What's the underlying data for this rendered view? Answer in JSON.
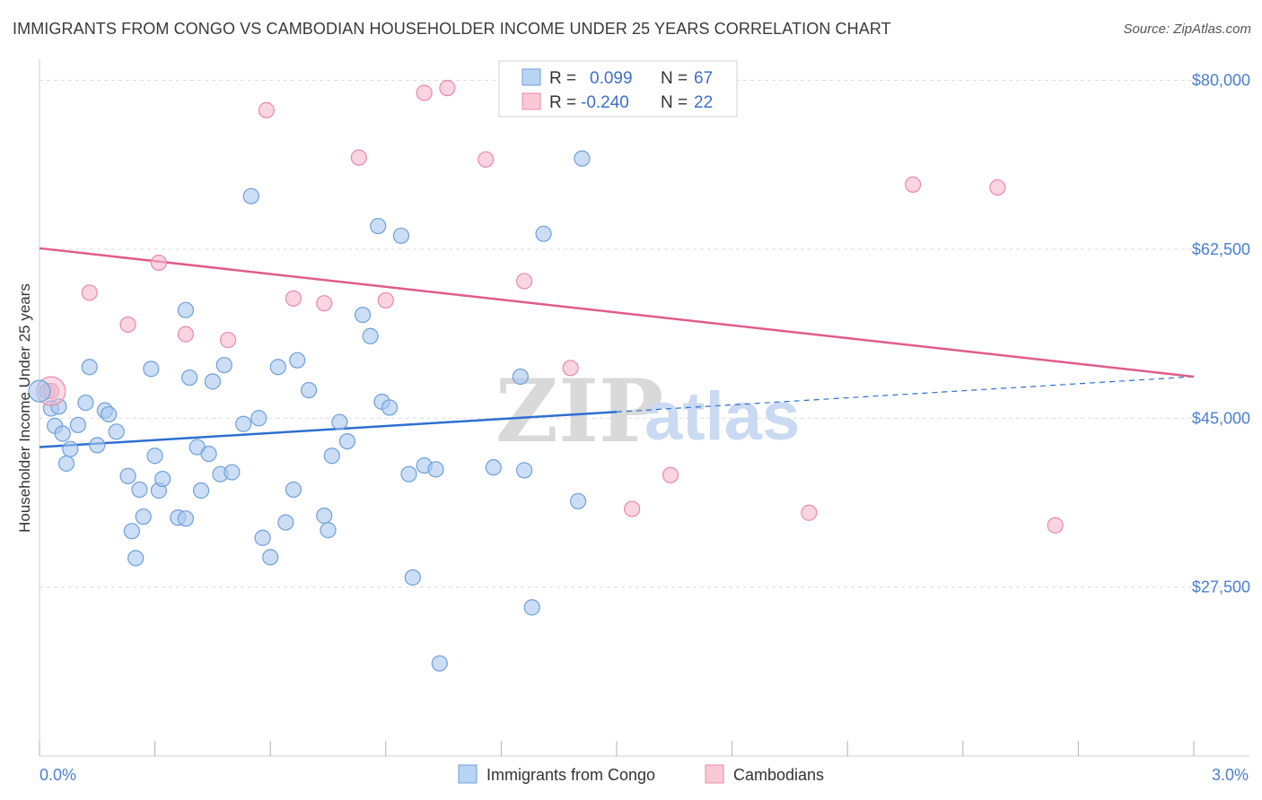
{
  "title": "IMMIGRANTS FROM CONGO VS CAMBODIAN HOUSEHOLDER INCOME UNDER 25 YEARS CORRELATION CHART",
  "source": "Source: ZipAtlas.com",
  "watermark": {
    "zip": "ZIP",
    "atlas": "atlas"
  },
  "chart_data": {
    "type": "scatter",
    "title": "IMMIGRANTS FROM CONGO VS CAMBODIAN HOUSEHOLDER INCOME UNDER 25 YEARS CORRELATION CHART",
    "xlabel": "",
    "ylabel": "Householder Income Under 25 years",
    "xlim": [
      0.0,
      3.0
    ],
    "ylim": [
      10000,
      82000
    ],
    "x_tick_labels": {
      "left": "0.0%",
      "right": "3.0%"
    },
    "y_ticks": [
      {
        "value": 80000,
        "label": "$80,000"
      },
      {
        "value": 62500,
        "label": "$62,500"
      },
      {
        "value": 45000,
        "label": "$45,000"
      },
      {
        "value": 27500,
        "label": "$27,500"
      }
    ],
    "legend": {
      "series1": {
        "r_label": "R =",
        "r_value": "0.099",
        "n_label": "N =",
        "n_value": "67"
      },
      "series2": {
        "r_label": "R =",
        "r_value": "-0.240",
        "n_label": "N =",
        "n_value": "22"
      }
    },
    "series": [
      {
        "name": "Immigrants from Congo",
        "color": "#a9c8f0",
        "stroke": "#6f9fd8",
        "line_color": "#2e6fd0",
        "trend": {
          "x0": 0.0,
          "y0": 42000,
          "x1": 3.0,
          "y1": 49300,
          "solid_until": 1.5
        },
        "points": [
          [
            0.02,
            47800
          ],
          [
            0.03,
            46000
          ],
          [
            0.04,
            44200
          ],
          [
            0.06,
            43400
          ],
          [
            0.07,
            40300
          ],
          [
            0.08,
            41800
          ],
          [
            0.1,
            44300
          ],
          [
            0.12,
            46600
          ],
          [
            0.13,
            50300
          ],
          [
            0.15,
            42200
          ],
          [
            0.17,
            45800
          ],
          [
            0.18,
            45400
          ],
          [
            0.2,
            43600
          ],
          [
            0.23,
            39000
          ],
          [
            0.24,
            33300
          ],
          [
            0.25,
            30500
          ],
          [
            0.26,
            37600
          ],
          [
            0.27,
            34800
          ],
          [
            0.29,
            50100
          ],
          [
            0.3,
            41100
          ],
          [
            0.31,
            37500
          ],
          [
            0.32,
            38700
          ],
          [
            0.36,
            34700
          ],
          [
            0.38,
            56200
          ],
          [
            0.38,
            34600
          ],
          [
            0.39,
            49200
          ],
          [
            0.41,
            42000
          ],
          [
            0.42,
            37500
          ],
          [
            0.44,
            41300
          ],
          [
            0.45,
            48800
          ],
          [
            0.47,
            39200
          ],
          [
            0.48,
            50500
          ],
          [
            0.5,
            39400
          ],
          [
            0.53,
            44400
          ],
          [
            0.55,
            68000
          ],
          [
            0.57,
            45000
          ],
          [
            0.58,
            32600
          ],
          [
            0.6,
            30600
          ],
          [
            0.62,
            50300
          ],
          [
            0.64,
            34200
          ],
          [
            0.66,
            37600
          ],
          [
            0.67,
            51000
          ],
          [
            0.7,
            47900
          ],
          [
            0.74,
            34900
          ],
          [
            0.75,
            33400
          ],
          [
            0.76,
            41100
          ],
          [
            0.78,
            44600
          ],
          [
            0.8,
            42600
          ],
          [
            0.84,
            55700
          ],
          [
            0.86,
            53500
          ],
          [
            0.88,
            64900
          ],
          [
            0.89,
            46700
          ],
          [
            0.91,
            46100
          ],
          [
            0.94,
            63900
          ],
          [
            0.96,
            39200
          ],
          [
            0.97,
            28500
          ],
          [
            1.0,
            40100
          ],
          [
            1.03,
            39700
          ],
          [
            1.04,
            19600
          ],
          [
            1.18,
            39900
          ],
          [
            1.25,
            49300
          ],
          [
            1.26,
            39600
          ],
          [
            1.28,
            25400
          ],
          [
            1.31,
            64100
          ],
          [
            1.4,
            36400
          ],
          [
            1.41,
            71900
          ],
          [
            0.05,
            46200
          ]
        ]
      },
      {
        "name": "Cambodians",
        "color": "#f7b8cb",
        "stroke": "#e88aa8",
        "line_color": "#e05c8a",
        "trend": {
          "x0": 0.0,
          "y0": 62600,
          "x1": 3.0,
          "y1": 49300,
          "solid_until": 3.0
        },
        "points": [
          [
            0.03,
            47800
          ],
          [
            0.13,
            58000
          ],
          [
            0.23,
            54700
          ],
          [
            0.31,
            61100
          ],
          [
            0.38,
            53700
          ],
          [
            0.49,
            53100
          ],
          [
            0.59,
            76900
          ],
          [
            0.66,
            57400
          ],
          [
            0.74,
            56900
          ],
          [
            0.83,
            72000
          ],
          [
            0.9,
            57200
          ],
          [
            1.0,
            78700
          ],
          [
            1.06,
            79200
          ],
          [
            1.16,
            71800
          ],
          [
            1.26,
            59200
          ],
          [
            1.38,
            50200
          ],
          [
            1.54,
            35600
          ],
          [
            1.64,
            39100
          ],
          [
            2.0,
            35200
          ],
          [
            2.27,
            69200
          ],
          [
            2.49,
            68900
          ],
          [
            2.64,
            33900
          ]
        ]
      }
    ]
  }
}
